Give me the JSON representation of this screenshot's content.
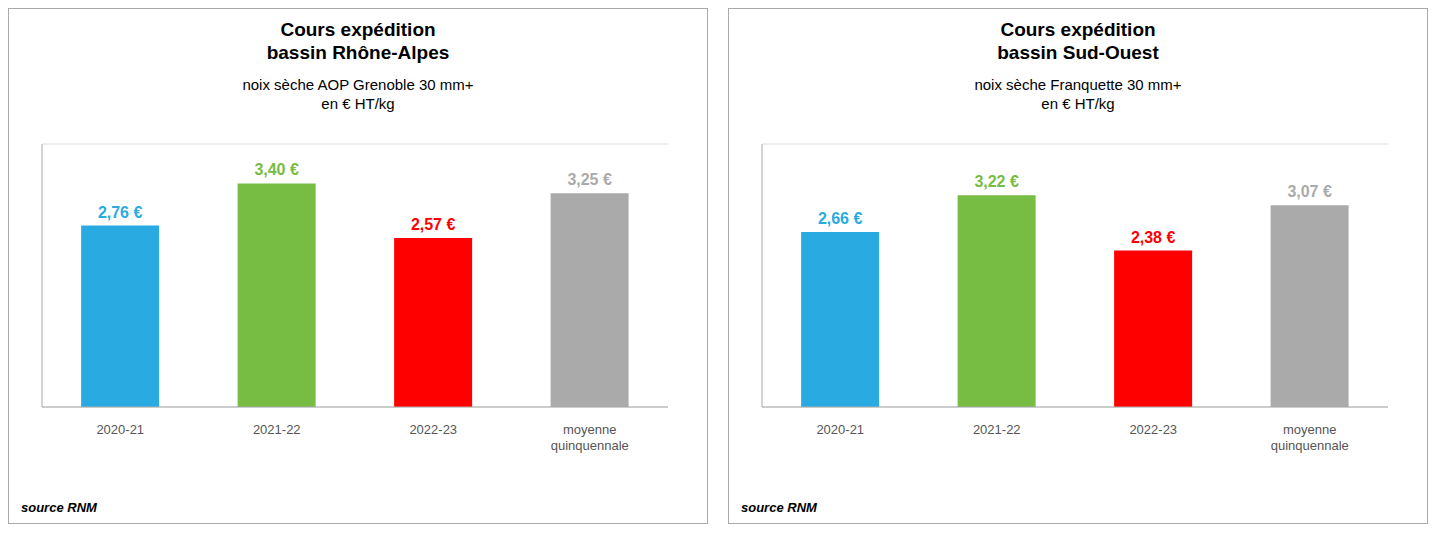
{
  "chart_data": [
    {
      "type": "bar",
      "title": "Cours expédition\nbassin Rhône-Alpes",
      "subtitle": "noix sèche AOP Grenoble 30 mm+\nen € HT/kg",
      "categories": [
        "2020-21",
        "2021-22",
        "2022-23",
        "moyenne\nquinquennale"
      ],
      "values": [
        2.76,
        3.4,
        2.57,
        3.25
      ],
      "value_labels": [
        "2,76 €",
        "3,40 €",
        "2,57 €",
        "3,25 €"
      ],
      "colors": [
        "#29ABE2",
        "#77BC43",
        "#FF0000",
        "#AAAAAA"
      ],
      "ylim": [
        0,
        4.0
      ],
      "yticks": [
        0.5,
        1.0,
        1.5,
        2.0,
        2.5,
        3.0,
        3.5
      ],
      "grid": true,
      "data_labels": true,
      "tick_labels": "x",
      "annotations": [
        "source RNM"
      ]
    },
    {
      "type": "bar",
      "title": "Cours expédition\nbassin Sud-Ouest",
      "subtitle": "noix sèche Franquette 30 mm+\nen € HT/kg",
      "categories": [
        "2020-21",
        "2021-22",
        "2022-23",
        "moyenne\nquinquennale"
      ],
      "values": [
        2.66,
        3.22,
        2.38,
        3.07
      ],
      "value_labels": [
        "2,66 €",
        "3,22 €",
        "2,38 €",
        "3,07 €"
      ],
      "colors": [
        "#29ABE2",
        "#77BC43",
        "#FF0000",
        "#AAAAAA"
      ],
      "ylim": [
        0,
        4.0
      ],
      "yticks": [
        0.5,
        1.0,
        1.5,
        2.0,
        2.5,
        3.0,
        3.5
      ],
      "grid": true,
      "data_labels": true,
      "tick_labels": "x",
      "annotations": [
        "source RNM"
      ]
    }
  ]
}
